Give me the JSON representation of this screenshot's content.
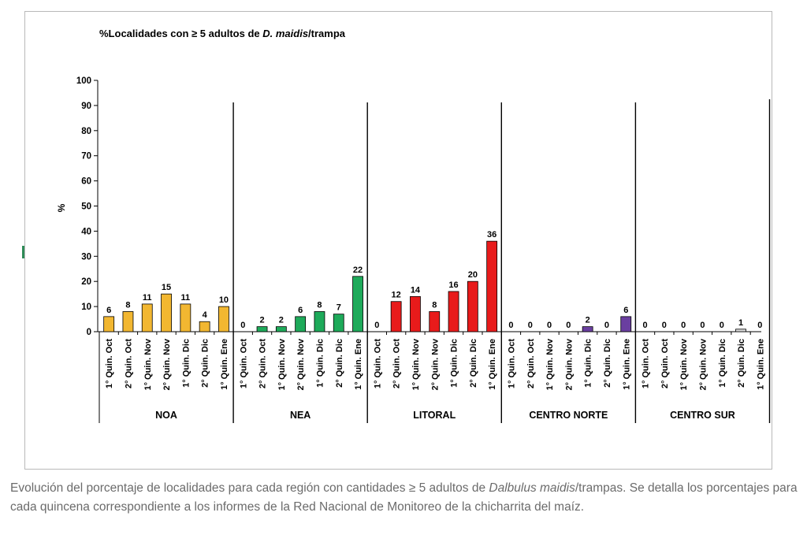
{
  "chart_data": {
    "type": "bar",
    "title_prefix": "%Localidades con ≥ 5 adultos de ",
    "title_italic": "D. maidis",
    "title_suffix": "/trampa",
    "ylabel": "%",
    "ylim": [
      0,
      100
    ],
    "yticks": [
      0,
      10,
      20,
      30,
      40,
      50,
      60,
      70,
      80,
      90,
      100
    ],
    "groups": [
      {
        "name": "NOA",
        "color": "#f2b731",
        "categories": [
          "1° Quin. Oct",
          "2° Quin. Oct",
          "1° Quin. Nov",
          "2° Quin. Nov",
          "1° Quin. Dic",
          "2° Quin. Dic",
          "1° Quin. Ene"
        ],
        "values": [
          6,
          8,
          11,
          15,
          11,
          4,
          10
        ]
      },
      {
        "name": "NEA",
        "color": "#1eaa5a",
        "categories": [
          "1° Quin. Oct",
          "2° Quin. Oct",
          "1° Quin. Nov",
          "2° Quin. Nov",
          "1° Quin. Dic",
          "2° Quin. Dic",
          "1° Quin. Ene"
        ],
        "values": [
          0,
          2,
          2,
          6,
          8,
          7,
          22
        ]
      },
      {
        "name": "LITORAL",
        "color": "#e81b1b",
        "categories": [
          "1° Quin. Oct",
          "2° Quin. Oct",
          "1° Quin. Nov",
          "2° Quin. Nov",
          "1° Quin. Dic",
          "2° Quin. Dic",
          "1° Quin. Ene"
        ],
        "values": [
          0,
          12,
          14,
          8,
          16,
          20,
          36
        ]
      },
      {
        "name": "CENTRO NORTE",
        "color": "#6a3fa0",
        "categories": [
          "1° Quin. Oct",
          "2° Quin. Oct",
          "1° Quin. Nov",
          "2° Quin. Nov",
          "1° Quin. Dic",
          "2° Quin. Dic",
          "1° Quin. Ene"
        ],
        "values": [
          0,
          0,
          0,
          0,
          2,
          0,
          6
        ]
      },
      {
        "name": "CENTRO SUR",
        "color": "#d9d9d9",
        "categories": [
          "1° Quin. Oct",
          "2° Quin. Oct",
          "1° Quin. Nov",
          "2° Quin. Nov",
          "1° Quin. Dic",
          "2° Quin. Dic",
          "1° Quin. Ene"
        ],
        "values": [
          0,
          0,
          0,
          0,
          0,
          1,
          0
        ]
      }
    ]
  },
  "caption": {
    "part1": "Evolución del porcentaje de localidades para cada región con cantidades ≥ 5 adultos de ",
    "italic": "Dalbulus maidis",
    "part2": "/trampas. Se detalla los porcentajes para cada quincena correspondiente a los informes de la Red Nacional de Monitoreo de la chicharrita del maíz."
  }
}
